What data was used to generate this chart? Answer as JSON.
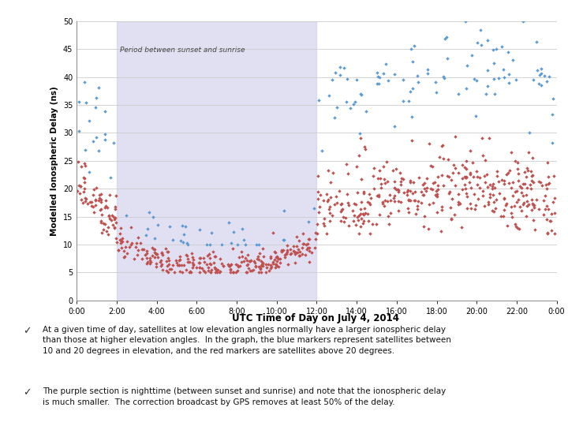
{
  "title": "UTC Time of Day on July 4, 2014",
  "ylabel": "Modelled Ionospheric Delay (ns)",
  "shaded_region_label": "Period between sunset and sunrise",
  "shaded_xmin": 2.0,
  "shaded_xmax": 12.0,
  "shaded_color": "#c8c8e8",
  "shaded_alpha": 0.55,
  "xlim": [
    0,
    24
  ],
  "ylim": [
    0,
    50
  ],
  "xtick_hours": [
    0,
    2,
    4,
    6,
    8,
    10,
    12,
    14,
    16,
    18,
    20,
    22,
    24
  ],
  "xtick_labels": [
    "0:00",
    "2:00",
    "4:00",
    "6:00",
    "8:00",
    "10:00",
    "12:00",
    "14:00",
    "16:00",
    "18:00",
    "20:00",
    "22:00",
    "0:00"
  ],
  "ytick_values": [
    0,
    5,
    10,
    15,
    20,
    25,
    30,
    35,
    40,
    45,
    50
  ],
  "blue_color": "#5b9bd5",
  "red_color": "#c0504d",
  "marker_size": 5,
  "bullet1": "At a given time of day, satellites at low elevation angles normally have a larger ionospheric delay\nthan those at higher elevation angles.  In the graph, the blue markers represent satellites between\n10 and 20 degrees in elevation, and the red markers are satellites above 20 degrees.",
  "bullet2": "The purple section is nighttime (between sunset and sunrise) and note that the ionospheric delay\nis much smaller.  The correction broadcast by GPS removes at least 50% of the delay.",
  "background_color": "#ffffff",
  "grid_color": "#cccccc"
}
